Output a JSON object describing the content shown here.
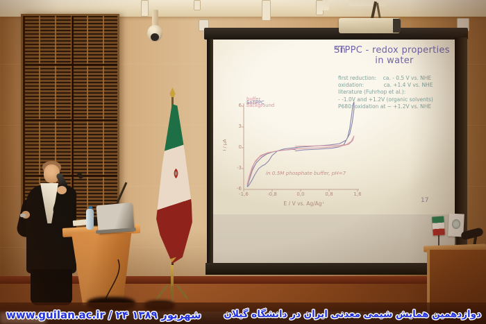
{
  "overlay": {
    "left_caption": "www.guilan.ac.ir / ۲۴ شهریور ۱۳۸۹",
    "right_caption": "دوازدهمین همایش شیمی معدنی ایران در دانشگاه گیلان",
    "caption_color": "#2433e0"
  },
  "slide": {
    "title": {
      "prefix": "Sn",
      "superscript": "IV",
      "rest": "TPPC - redox properties in water",
      "color": "#6f63a8"
    },
    "notes": [
      "first reduction:    ca. - 0.5 V vs. NHE",
      "oxidation:            ca. +1.4 V vs. NHE",
      "literature (Fuhrhop et al.):",
      "- -1.0V and +1.2V (organic solvents)",
      "P680: oxidation at ~ +1.2V vs. NHE"
    ],
    "notes_color": "#7fa29a",
    "page_number": "17"
  },
  "chart_data": {
    "type": "line",
    "subtype": "cyclic-voltammogram",
    "title": "",
    "xlabel": "E / V vs. Ag/Ag⁺",
    "ylabel": "I / μA",
    "xlim": [
      -1.6,
      1.6
    ],
    "ylim": [
      -6,
      6
    ],
    "x_ticks": [
      -1.6,
      -0.8,
      0.0,
      0.8,
      1.6
    ],
    "x_tick_labels": [
      "-1,6",
      "-0,8",
      "0,0",
      "0,8",
      "1,6"
    ],
    "y_ticks": [
      6,
      3,
      0,
      -3,
      -6
    ],
    "y_tick_labels": [
      "6",
      "3",
      "0",
      "-3",
      "-6"
    ],
    "grid": false,
    "legend_position": "top-left",
    "annotation": "in 0.5M phosphate buffer, pH=7",
    "series": [
      {
        "name": "SnTPPC",
        "color": "#8683ab",
        "points": [
          [
            -0.15,
            -0.45
          ],
          [
            0.1,
            -0.3
          ],
          [
            0.5,
            -0.2
          ],
          [
            0.9,
            -0.05
          ],
          [
            1.1,
            0.15
          ],
          [
            1.22,
            0.5
          ],
          [
            1.32,
            1.5
          ],
          [
            1.38,
            2.8
          ],
          [
            1.43,
            4.6
          ],
          [
            1.47,
            6.2
          ],
          [
            1.5,
            6.6
          ],
          [
            1.5,
            5.6
          ],
          [
            1.45,
            3.6
          ],
          [
            1.38,
            2.0
          ],
          [
            1.28,
            1.1
          ],
          [
            1.1,
            0.6
          ],
          [
            0.8,
            0.4
          ],
          [
            0.4,
            0.25
          ],
          [
            0.0,
            0.1
          ],
          [
            -0.2,
            0.0
          ],
          [
            -0.45,
            -0.15
          ],
          [
            -0.65,
            -0.45
          ],
          [
            -0.8,
            -1.1
          ],
          [
            -0.9,
            -1.9
          ],
          [
            -1.0,
            -2.4
          ],
          [
            -1.08,
            -2.6
          ],
          [
            -1.18,
            -3.0
          ],
          [
            -1.28,
            -3.8
          ],
          [
            -1.38,
            -4.8
          ],
          [
            -1.47,
            -5.5
          ],
          [
            -1.5,
            -5.6
          ],
          [
            -1.44,
            -4.6
          ],
          [
            -1.36,
            -3.3
          ],
          [
            -1.25,
            -2.2
          ],
          [
            -1.1,
            -1.4
          ],
          [
            -0.95,
            -0.9
          ],
          [
            -0.75,
            -0.55
          ],
          [
            -0.5,
            -0.35
          ],
          [
            -0.25,
            -0.25
          ],
          [
            -0.15,
            -0.25
          ]
        ]
      },
      {
        "name": "buffer background",
        "color": "#d49aa4",
        "points": [
          [
            -0.15,
            0.2
          ],
          [
            0.2,
            0.25
          ],
          [
            0.7,
            0.3
          ],
          [
            1.1,
            0.35
          ],
          [
            1.3,
            0.5
          ],
          [
            1.42,
            0.9
          ],
          [
            1.5,
            1.7
          ],
          [
            1.46,
            1.0
          ],
          [
            1.35,
            0.5
          ],
          [
            1.1,
            0.2
          ],
          [
            0.7,
            0.05
          ],
          [
            0.3,
            -0.05
          ],
          [
            -0.1,
            -0.15
          ],
          [
            -0.4,
            -0.3
          ],
          [
            -0.7,
            -0.5
          ],
          [
            -0.95,
            -0.8
          ],
          [
            -1.15,
            -1.3
          ],
          [
            -1.3,
            -2.2
          ],
          [
            -1.4,
            -3.6
          ],
          [
            -1.47,
            -4.9
          ],
          [
            -1.5,
            -5.3
          ],
          [
            -1.45,
            -4.2
          ],
          [
            -1.37,
            -2.9
          ],
          [
            -1.27,
            -1.9
          ],
          [
            -1.12,
            -1.1
          ],
          [
            -0.92,
            -0.7
          ],
          [
            -0.65,
            -0.45
          ],
          [
            -0.35,
            -0.25
          ],
          [
            -0.1,
            -0.1
          ]
        ]
      }
    ]
  }
}
